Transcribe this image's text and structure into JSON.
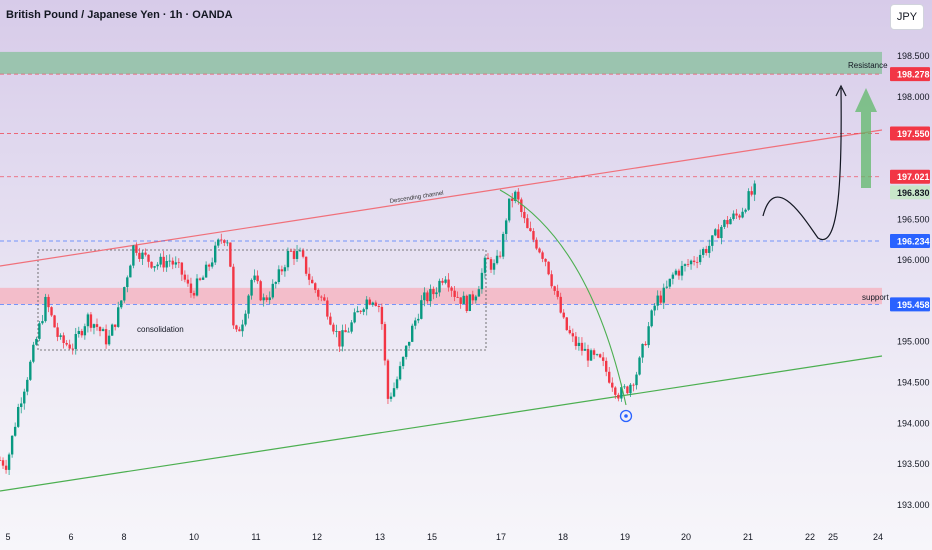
{
  "header": {
    "title": "British Pound / Japanese Yen · 1h · OANDA",
    "currency_button": "JPY"
  },
  "colors": {
    "up": "#089981",
    "down": "#f23645",
    "resistance_channel": "#f0707a",
    "support_channel": "#4caf50",
    "resistance_zone": "#8fc2a4",
    "support_zone": "#f4b6c2",
    "label_red": "#f23645",
    "label_blue": "#2962ff",
    "label_green_bg": "#c8e6c9"
  },
  "chart_data": {
    "type": "candlestick",
    "symbol": "GBPJPY",
    "timeframe": "1h",
    "ylim": [
      193.0,
      198.75
    ],
    "y_ticks": [
      "193.000",
      "193.500",
      "194.000",
      "194.500",
      "195.000",
      "195.500",
      "196.000",
      "196.500",
      "197.000",
      "197.500",
      "198.000",
      "198.500"
    ],
    "x_ticks": [
      "5",
      "6",
      "8",
      "10",
      "11",
      "12",
      "13",
      "15",
      "17",
      "18",
      "19",
      "20",
      "21",
      "22",
      "24",
      "25"
    ],
    "price_path": [
      [
        0,
        193.55
      ],
      [
        0.3,
        193.5
      ],
      [
        0.8,
        194.2
      ],
      [
        1.3,
        194.7
      ],
      [
        2.0,
        195.5
      ],
      [
        2.6,
        195.0
      ],
      [
        3.2,
        194.95
      ],
      [
        3.8,
        195.3
      ],
      [
        4.2,
        195.2
      ],
      [
        4.7,
        195.0
      ],
      [
        5.2,
        195.4
      ],
      [
        5.6,
        195.9
      ],
      [
        5.85,
        196.2
      ],
      [
        6.2,
        196.05
      ],
      [
        6.8,
        195.95
      ],
      [
        7.4,
        196.0
      ],
      [
        7.9,
        195.85
      ],
      [
        8.3,
        195.6
      ],
      [
        8.8,
        195.75
      ],
      [
        9.3,
        196.05
      ],
      [
        9.6,
        196.25
      ],
      [
        9.85,
        196.3
      ],
      [
        10.0,
        196.2
      ],
      [
        10.2,
        195.0
      ],
      [
        10.6,
        195.3
      ],
      [
        11.0,
        195.8
      ],
      [
        11.5,
        195.5
      ],
      [
        12.0,
        195.7
      ],
      [
        12.6,
        196.1
      ],
      [
        13.1,
        196.05
      ],
      [
        13.6,
        195.7
      ],
      [
        14.2,
        195.45
      ],
      [
        14.8,
        195.0
      ],
      [
        15.3,
        195.2
      ],
      [
        15.9,
        195.5
      ],
      [
        16.3,
        195.55
      ],
      [
        16.6,
        195.4
      ],
      [
        16.9,
        194.3
      ],
      [
        17.2,
        194.45
      ],
      [
        17.5,
        194.7
      ],
      [
        17.9,
        195.1
      ],
      [
        18.4,
        195.5
      ],
      [
        18.9,
        195.6
      ],
      [
        19.4,
        195.85
      ],
      [
        19.8,
        195.6
      ],
      [
        20.4,
        195.45
      ],
      [
        20.8,
        195.65
      ],
      [
        21.2,
        196.0
      ],
      [
        21.6,
        195.9
      ],
      [
        21.9,
        196.2
      ],
      [
        22.1,
        196.6
      ],
      [
        22.3,
        196.75
      ],
      [
        22.5,
        196.8
      ],
      [
        22.7,
        196.6
      ],
      [
        23.0,
        196.35
      ],
      [
        23.4,
        196.2
      ],
      [
        23.8,
        196.0
      ],
      [
        24.2,
        195.6
      ],
      [
        24.6,
        195.2
      ],
      [
        25.0,
        195.0
      ],
      [
        25.4,
        194.9
      ],
      [
        25.8,
        194.8
      ],
      [
        26.2,
        194.75
      ],
      [
        26.6,
        194.55
      ],
      [
        27.0,
        194.35
      ],
      [
        27.4,
        194.45
      ],
      [
        27.8,
        194.65
      ],
      [
        28.2,
        195.1
      ],
      [
        28.6,
        195.5
      ],
      [
        29.0,
        195.6
      ],
      [
        29.4,
        195.85
      ],
      [
        29.8,
        195.9
      ],
      [
        30.2,
        196.0
      ],
      [
        30.6,
        196.1
      ],
      [
        31.0,
        196.2
      ],
      [
        31.4,
        196.4
      ],
      [
        31.8,
        196.5
      ],
      [
        32.2,
        196.55
      ],
      [
        32.6,
        196.75
      ],
      [
        32.9,
        196.85
      ]
    ],
    "levels": [
      {
        "value": 198.278,
        "label": "198.278",
        "style": "red"
      },
      {
        "value": 197.55,
        "label": "197.550",
        "style": "red"
      },
      {
        "value": 197.021,
        "label": "197.021",
        "style": "red"
      },
      {
        "value": 196.83,
        "label": "196.830",
        "style": "green"
      },
      {
        "value": 196.234,
        "label": "196.234",
        "style": "blue"
      },
      {
        "value": 195.458,
        "label": "195.458",
        "style": "blue"
      }
    ],
    "zones": [
      {
        "name": "Resistance",
        "from": 198.28,
        "to": 198.55
      },
      {
        "name": "support",
        "from": 195.46,
        "to": 195.66
      }
    ],
    "annotations": {
      "descending_channel": "Descending channel",
      "consolidation": "consolidation"
    }
  }
}
